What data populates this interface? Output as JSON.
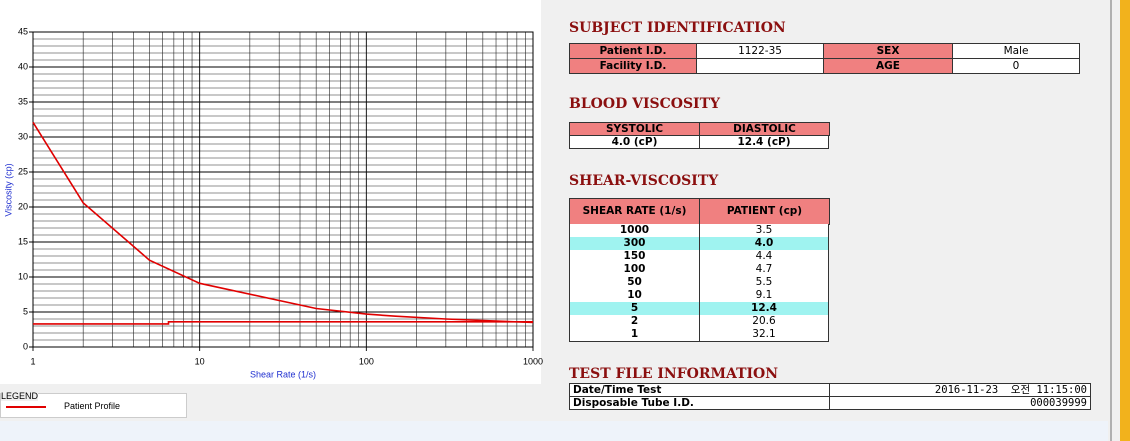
{
  "chart_data": {
    "type": "line",
    "xlabel": "Shear Rate (1/s)",
    "ylabel": "Viscosity (cp)",
    "xscale": "log",
    "xlim": [
      1,
      1000
    ],
    "xticks": [
      1,
      10,
      100,
      1000
    ],
    "x_minor_ticks": [
      2,
      3,
      4,
      5,
      6,
      7,
      8,
      9,
      20,
      30,
      40,
      50,
      60,
      70,
      80,
      90,
      200,
      300,
      400,
      500,
      600,
      700,
      800,
      900
    ],
    "ylim": [
      0,
      45
    ],
    "yticks": [
      0,
      5,
      10,
      15,
      20,
      25,
      30,
      35,
      40,
      45
    ],
    "y_minor_ticks": [
      1,
      2,
      3,
      4,
      6,
      7,
      8,
      9,
      11,
      12,
      13,
      14,
      16,
      17,
      18,
      19,
      21,
      22,
      23,
      24,
      26,
      27,
      28,
      29,
      31,
      32,
      33,
      34,
      36,
      37,
      38,
      39,
      41,
      42,
      43,
      44
    ],
    "grid": true,
    "legend_title": "LEGEND",
    "series": [
      {
        "name": "Patient Profile",
        "color": "#e00000",
        "x": [
          1,
          2,
          5,
          10,
          50,
          100,
          150,
          300,
          1000
        ],
        "values": [
          32.1,
          20.6,
          12.4,
          9.1,
          5.5,
          4.7,
          4.4,
          4.0,
          3.5
        ]
      },
      {
        "color": "#e00000",
        "x": [
          1,
          6.5,
          6.5,
          1000
        ],
        "values": [
          3.3,
          3.3,
          3.6,
          3.6
        ]
      }
    ]
  },
  "subject": {
    "title": "SUBJECT IDENTIFICATION",
    "rows": [
      [
        "Patient I.D.",
        "1122-35",
        "SEX",
        "Male"
      ],
      [
        "Facility I.D.",
        null,
        "AGE",
        "0"
      ]
    ]
  },
  "blood": {
    "title": "BLOOD VISCOSITY",
    "header": [
      "SYSTOLIC",
      "DIASTOLIC"
    ],
    "rows": [
      [
        "4.0 (cP)",
        "12.4 (cP)"
      ]
    ]
  },
  "shear": {
    "title": "SHEAR-VISCOSITY",
    "header": [
      "SHEAR RATE (1/s)",
      "PATIENT (cp)"
    ],
    "highlight": [
      1,
      6
    ],
    "rows": [
      [
        "1000",
        "3.5"
      ],
      [
        "300",
        "4.0"
      ],
      [
        "150",
        "4.4"
      ],
      [
        "100",
        "4.7"
      ],
      [
        "50",
        "5.5"
      ],
      [
        "10",
        "9.1"
      ],
      [
        "5",
        "12.4"
      ],
      [
        "2",
        "20.6"
      ],
      [
        "1",
        "32.1"
      ]
    ]
  },
  "testfile": {
    "title": "TEST FILE INFORMATION",
    "rows": [
      [
        "Date/Time Test",
        "2016-11-23  오전 11:15:00"
      ],
      [
        "Disposable Tube I.D.",
        "000039999"
      ]
    ]
  }
}
